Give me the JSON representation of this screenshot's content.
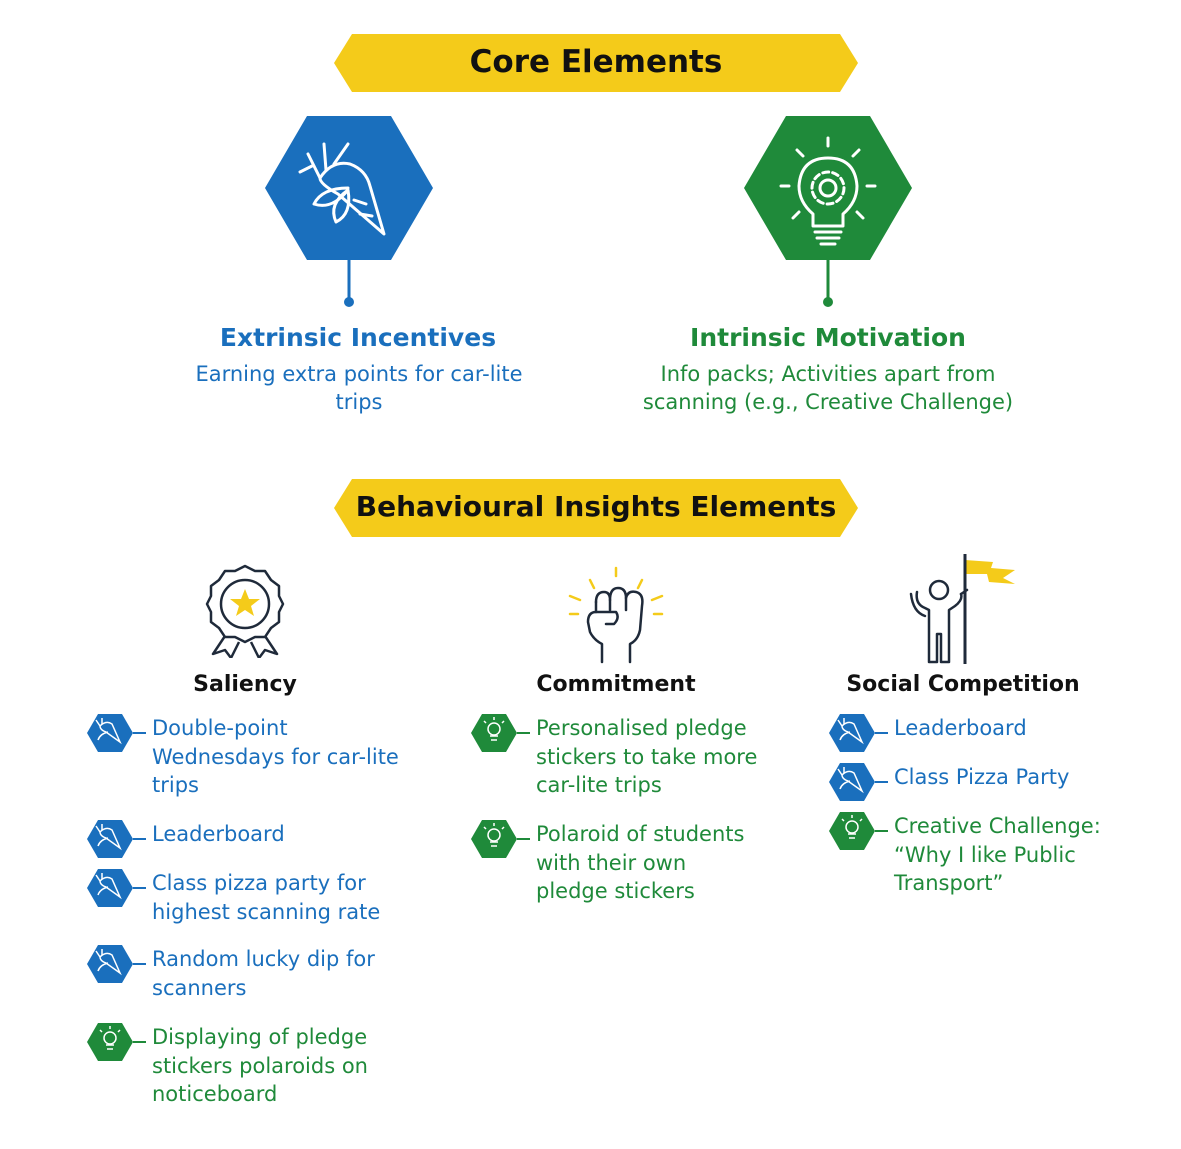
{
  "colors": {
    "yellow": "#f4cb1a",
    "blue": "#1a6fbd",
    "green": "#1f8a3a",
    "dark": "#1f2a3a"
  },
  "core": {
    "banner": "Core Elements",
    "extrinsic": {
      "title": "Extrinsic Incentives",
      "desc": "Earning extra points for car-lite\ntrips",
      "icon": "carrot-icon"
    },
    "intrinsic": {
      "title": "Intrinsic Motivation",
      "desc": "Info packs; Activities apart from\nscanning (e.g., Creative Challenge)",
      "icon": "lightbulb-gear-icon"
    }
  },
  "bi": {
    "banner": "Behavioural Insights Elements",
    "columns": [
      {
        "title": "Saliency",
        "icon": "award-ribbon-icon",
        "items": [
          {
            "text": "Double-point\nWednesdays for car-lite\ntrips",
            "type": "extrinsic"
          },
          {
            "text": "Leaderboard",
            "type": "extrinsic"
          },
          {
            "text": "Class pizza party for\nhighest scanning rate",
            "type": "extrinsic"
          },
          {
            "text": "Random lucky dip for\nscanners",
            "type": "extrinsic"
          },
          {
            "text": "Displaying of pledge\nstickers polaroids on\nnoticeboard",
            "type": "intrinsic"
          }
        ]
      },
      {
        "title": "Commitment",
        "icon": "raised-fist-icon",
        "items": [
          {
            "text": "Personalised pledge\nstickers to take more\ncar-lite trips",
            "type": "intrinsic"
          },
          {
            "text": "Polaroid of students\nwith their own\npledge stickers",
            "type": "intrinsic"
          }
        ]
      },
      {
        "title": "Social Competition",
        "icon": "person-flag-icon",
        "items": [
          {
            "text": "Leaderboard",
            "type": "extrinsic"
          },
          {
            "text": "Class Pizza Party",
            "type": "extrinsic"
          },
          {
            "text": "Creative Challenge:\n“Why I like Public\nTransport”",
            "type": "intrinsic"
          }
        ]
      }
    ]
  }
}
